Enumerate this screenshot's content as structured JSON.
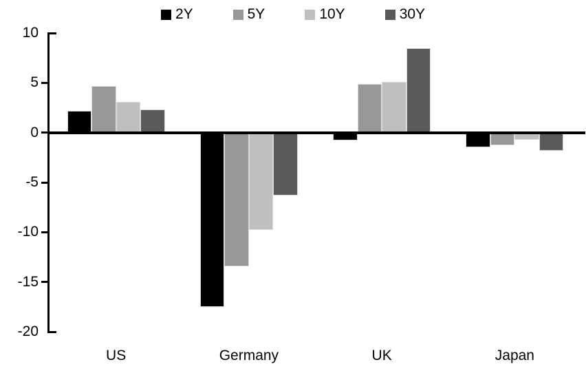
{
  "chart_data": {
    "type": "bar",
    "title": "",
    "xlabel": "",
    "ylabel": "",
    "categories": [
      "US",
      "Germany",
      "UK",
      "Japan"
    ],
    "series": [
      {
        "name": "2Y",
        "color": "#000000",
        "values": [
          2.2,
          -17.5,
          -0.8,
          -1.5
        ]
      },
      {
        "name": "5Y",
        "color": "#989898",
        "values": [
          4.7,
          -13.4,
          4.9,
          -1.3
        ]
      },
      {
        "name": "10Y",
        "color": "#bfbfbf",
        "values": [
          3.1,
          -9.8,
          5.1,
          -0.7
        ]
      },
      {
        "name": "30Y",
        "color": "#595959",
        "values": [
          2.3,
          -6.3,
          8.5,
          -1.8
        ]
      }
    ],
    "ylim": [
      -20,
      10
    ],
    "yticks": [
      10,
      5,
      0,
      -5,
      -10,
      -15,
      -20
    ],
    "legend_position": "top-center",
    "grid": false,
    "axis_color": "#000000",
    "background_color": "#ffffff"
  }
}
